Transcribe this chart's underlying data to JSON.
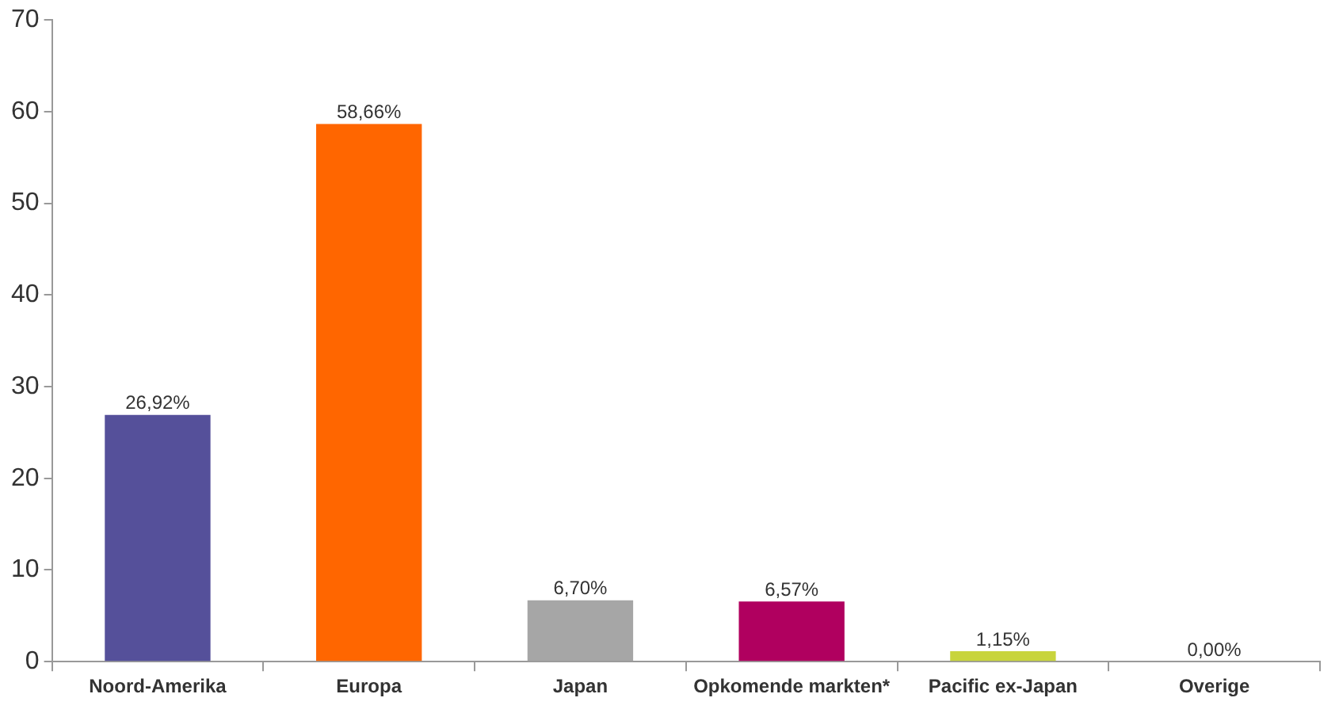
{
  "chart_data": {
    "type": "bar",
    "categories": [
      "Noord-Amerika",
      "Europa",
      "Japan",
      "Opkomende markten*",
      "Pacific ex-Japan",
      "Overige"
    ],
    "values": [
      26.92,
      58.66,
      6.7,
      6.57,
      1.15,
      0.0
    ],
    "colors": [
      "#55509a",
      "#ff6600",
      "#a6a6a6",
      "#b0005f",
      "#c8d43c",
      "#8fa8c8"
    ],
    "value_labels": [
      "26,92%",
      "58,66%",
      "6,70%",
      "6,57%",
      "1,15%",
      "0,00%"
    ],
    "ylim": [
      0,
      70
    ],
    "yticks": [
      0,
      10,
      20,
      30,
      40,
      50,
      60,
      70
    ],
    "grid": false,
    "legend": false
  }
}
